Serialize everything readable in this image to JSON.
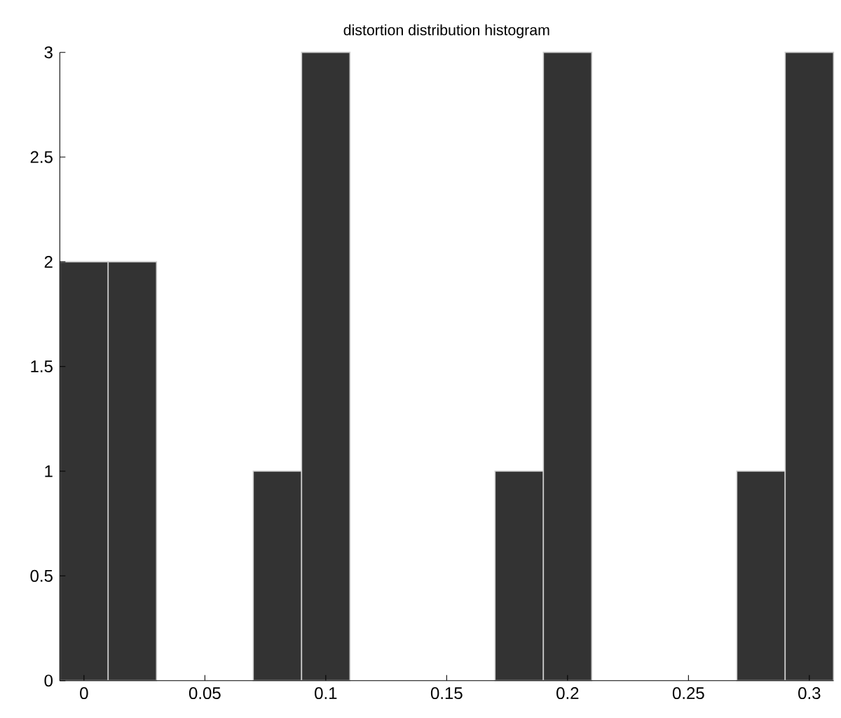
{
  "chart_data": {
    "type": "histogram",
    "title": "distortion distribution histogram",
    "bins": [
      -0.01,
      0.01,
      0.03,
      0.05,
      0.07,
      0.09,
      0.11,
      0.13,
      0.15,
      0.17,
      0.19,
      0.21,
      0.23,
      0.25,
      0.27,
      0.29,
      0.31
    ],
    "values": [
      2,
      2,
      0,
      0,
      1,
      3,
      0,
      0,
      0,
      1,
      3,
      0,
      0,
      0,
      1,
      3
    ],
    "color": "#333333",
    "xlim": [
      -0.01,
      0.31
    ],
    "xticks": [
      0,
      0.05,
      0.1,
      0.15,
      0.2,
      0.25,
      0.3
    ],
    "ylim": [
      0,
      3
    ],
    "yticks": [
      0,
      0.5,
      1,
      1.5,
      2,
      2.5,
      3
    ]
  }
}
